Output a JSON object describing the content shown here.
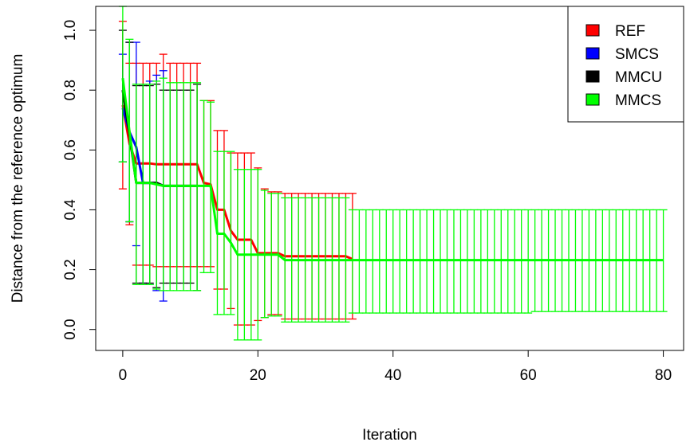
{
  "chart_data": {
    "type": "line",
    "title": "",
    "xlabel": "Iteration",
    "ylabel": "Distance from the reference optimum",
    "xlim": [
      -4,
      83
    ],
    "ylim": [
      -0.07,
      1.08
    ],
    "xticks": [
      0,
      20,
      40,
      60,
      80
    ],
    "yticks": [
      0.0,
      0.2,
      0.4,
      0.6,
      0.8,
      1.0
    ],
    "x_tick_labels": [
      "0",
      "20",
      "40",
      "60",
      "80"
    ],
    "y_tick_labels": [
      "0.0",
      "0.2",
      "0.4",
      "0.6",
      "0.8",
      "1.0"
    ],
    "grid": false,
    "legend_position": "top-right",
    "error_bars": true,
    "series": [
      {
        "name": "REF",
        "color": "#ff0000",
        "x": [
          0,
          1,
          2,
          3,
          4,
          5,
          6,
          7,
          8,
          9,
          10,
          11,
          12,
          13,
          14,
          15,
          16,
          17,
          18,
          19,
          20,
          21,
          22,
          23,
          24,
          25,
          26,
          27,
          28,
          29,
          30,
          31,
          32,
          33,
          34
        ],
        "mean": [
          0.75,
          0.62,
          0.555,
          0.555,
          0.555,
          0.552,
          0.552,
          0.552,
          0.552,
          0.552,
          0.552,
          0.552,
          0.49,
          0.485,
          0.4,
          0.4,
          0.33,
          0.3,
          0.3,
          0.3,
          0.255,
          0.255,
          0.255,
          0.255,
          0.245,
          0.245,
          0.245,
          0.245,
          0.245,
          0.245,
          0.245,
          0.245,
          0.245,
          0.245,
          0.235
        ],
        "lower": [
          0.47,
          0.35,
          0.215,
          0.215,
          0.215,
          0.21,
          0.21,
          0.21,
          0.21,
          0.21,
          0.21,
          0.21,
          0.21,
          0.21,
          0.135,
          0.135,
          0.07,
          0.015,
          0.015,
          0.015,
          0.03,
          0.04,
          0.05,
          0.05,
          0.035,
          0.035,
          0.035,
          0.035,
          0.035,
          0.035,
          0.035,
          0.035,
          0.035,
          0.035,
          0.035
        ],
        "upper": [
          1.03,
          0.89,
          0.89,
          0.89,
          0.89,
          0.89,
          0.92,
          0.89,
          0.89,
          0.89,
          0.89,
          0.89,
          0.765,
          0.765,
          0.665,
          0.665,
          0.59,
          0.59,
          0.59,
          0.59,
          0.54,
          0.47,
          0.46,
          0.46,
          0.455,
          0.455,
          0.455,
          0.455,
          0.455,
          0.455,
          0.455,
          0.455,
          0.455,
          0.455,
          0.455
        ]
      },
      {
        "name": "SMCS",
        "color": "#0000ff",
        "x": [
          0,
          1,
          2,
          3,
          4,
          5,
          6
        ],
        "mean": [
          0.74,
          0.66,
          0.61,
          0.49,
          0.49,
          0.49,
          0.48
        ],
        "lower": [
          0.56,
          0.36,
          0.28,
          0.155,
          0.15,
          0.13,
          0.095
        ],
        "upper": [
          0.92,
          0.96,
          0.96,
          0.82,
          0.83,
          0.85,
          0.865
        ]
      },
      {
        "name": "MMCU",
        "color": "#000000",
        "x": [
          0,
          1,
          2,
          3,
          4,
          5,
          6,
          7,
          8,
          9,
          10,
          11
        ],
        "mean": [
          0.8,
          0.65,
          0.49,
          0.49,
          0.49,
          0.49,
          0.48,
          0.48,
          0.48,
          0.48,
          0.48,
          0.48
        ],
        "lower": [
          0.56,
          0.36,
          0.155,
          0.155,
          0.155,
          0.14,
          0.155,
          0.155,
          0.155,
          0.155,
          0.155,
          0.13
        ],
        "upper": [
          1.0,
          0.96,
          0.815,
          0.815,
          0.815,
          0.82,
          0.8,
          0.8,
          0.8,
          0.8,
          0.8,
          0.82
        ]
      },
      {
        "name": "MMCS",
        "color": "#00ff00",
        "x": [
          0,
          1,
          2,
          3,
          4,
          5,
          6,
          7,
          8,
          9,
          10,
          11,
          12,
          13,
          14,
          15,
          16,
          17,
          18,
          19,
          20,
          21,
          22,
          23,
          24,
          25,
          26,
          27,
          28,
          29,
          30,
          31,
          32,
          33,
          34,
          35,
          36,
          37,
          38,
          39,
          40,
          41,
          42,
          43,
          44,
          45,
          46,
          47,
          48,
          49,
          50,
          51,
          52,
          53,
          54,
          55,
          56,
          57,
          58,
          59,
          60,
          61,
          62,
          63,
          64,
          65,
          66,
          67,
          68,
          69,
          70,
          71,
          72,
          73,
          74,
          75,
          76,
          77,
          78,
          79,
          80
        ],
        "mean": [
          0.84,
          0.66,
          0.49,
          0.49,
          0.49,
          0.485,
          0.48,
          0.48,
          0.48,
          0.48,
          0.48,
          0.48,
          0.48,
          0.48,
          0.32,
          0.32,
          0.29,
          0.25,
          0.25,
          0.25,
          0.25,
          0.25,
          0.25,
          0.25,
          0.232,
          0.232,
          0.232,
          0.232,
          0.232,
          0.232,
          0.232,
          0.232,
          0.232,
          0.232,
          0.232,
          0.232,
          0.232,
          0.232,
          0.232,
          0.232,
          0.232,
          0.232,
          0.232,
          0.232,
          0.232,
          0.232,
          0.232,
          0.232,
          0.232,
          0.232,
          0.232,
          0.232,
          0.232,
          0.232,
          0.232,
          0.232,
          0.232,
          0.232,
          0.232,
          0.232,
          0.232,
          0.232,
          0.232,
          0.232,
          0.232,
          0.232,
          0.232,
          0.232,
          0.232,
          0.232,
          0.232,
          0.232,
          0.232,
          0.232,
          0.232,
          0.232,
          0.232,
          0.232,
          0.232,
          0.232,
          0.232
        ],
        "lower": [
          0.56,
          0.36,
          0.15,
          0.15,
          0.15,
          0.135,
          0.13,
          0.13,
          0.13,
          0.13,
          0.13,
          0.13,
          0.19,
          0.19,
          0.05,
          0.05,
          0.05,
          -0.035,
          -0.035,
          -0.035,
          -0.035,
          0.04,
          0.045,
          0.045,
          0.025,
          0.025,
          0.025,
          0.025,
          0.025,
          0.025,
          0.025,
          0.025,
          0.025,
          0.025,
          0.055,
          0.055,
          0.055,
          0.055,
          0.055,
          0.055,
          0.055,
          0.055,
          0.055,
          0.055,
          0.055,
          0.055,
          0.055,
          0.055,
          0.055,
          0.055,
          0.055,
          0.055,
          0.055,
          0.055,
          0.055,
          0.055,
          0.055,
          0.055,
          0.055,
          0.055,
          0.055,
          0.06,
          0.06,
          0.06,
          0.06,
          0.06,
          0.06,
          0.06,
          0.06,
          0.06,
          0.06,
          0.06,
          0.06,
          0.06,
          0.06,
          0.06,
          0.06,
          0.06,
          0.06,
          0.06,
          0.06
        ],
        "upper": [
          1.08,
          0.97,
          0.82,
          0.82,
          0.82,
          0.83,
          0.84,
          0.825,
          0.825,
          0.825,
          0.825,
          0.825,
          0.765,
          0.76,
          0.595,
          0.595,
          0.595,
          0.535,
          0.535,
          0.535,
          0.535,
          0.465,
          0.455,
          0.455,
          0.44,
          0.44,
          0.44,
          0.44,
          0.44,
          0.44,
          0.44,
          0.44,
          0.44,
          0.44,
          0.4,
          0.4,
          0.4,
          0.4,
          0.4,
          0.4,
          0.4,
          0.4,
          0.4,
          0.4,
          0.4,
          0.4,
          0.4,
          0.4,
          0.4,
          0.4,
          0.4,
          0.4,
          0.4,
          0.4,
          0.4,
          0.4,
          0.4,
          0.4,
          0.4,
          0.4,
          0.4,
          0.4,
          0.4,
          0.4,
          0.4,
          0.4,
          0.4,
          0.4,
          0.4,
          0.4,
          0.4,
          0.4,
          0.4,
          0.4,
          0.4,
          0.4,
          0.4,
          0.4,
          0.4,
          0.4,
          0.4
        ]
      }
    ]
  }
}
